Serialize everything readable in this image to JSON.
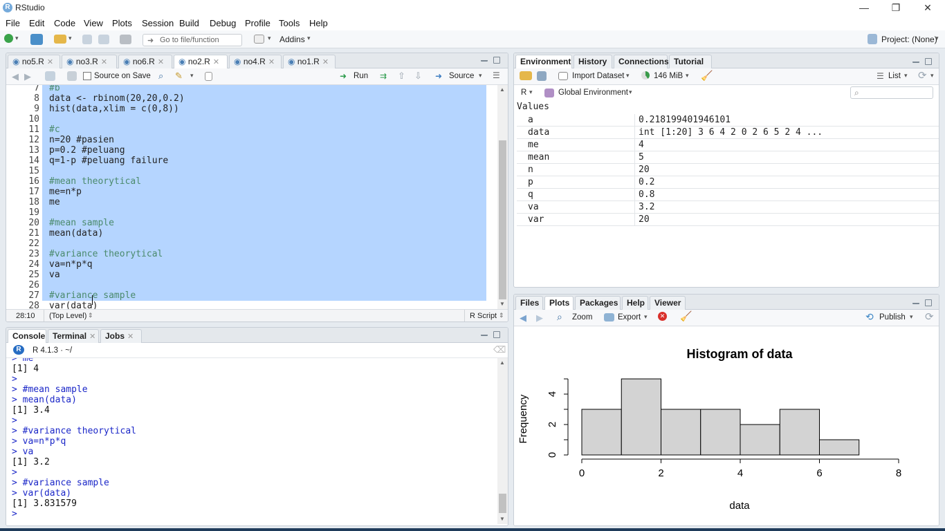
{
  "app": {
    "title": "RStudio"
  },
  "window_controls": {
    "minimize": "—",
    "restore": "❐",
    "close": "✕"
  },
  "menu": [
    "File",
    "Edit",
    "Code",
    "View",
    "Plots",
    "Session",
    "Build",
    "Debug",
    "Profile",
    "Tools",
    "Help"
  ],
  "toolbar": {
    "goto_placeholder": "Go to file/function",
    "addins": "Addins",
    "project": "Project: (None)"
  },
  "editor": {
    "tabs": [
      "no5.R",
      "no3.R",
      "no6.R",
      "no2.R",
      "no4.R",
      "no1.R"
    ],
    "active_tab": "no2.R",
    "source_on_save": "Source on Save",
    "run": "Run",
    "source": "Source",
    "lines": [
      {
        "n": "7",
        "t": "#b",
        "c": "comment"
      },
      {
        "n": "8",
        "t": "data <- rbinom(20,20,0.2)",
        "c": "code"
      },
      {
        "n": "9",
        "t": "hist(data,xlim = c(0,8))",
        "c": "code"
      },
      {
        "n": "10",
        "t": "",
        "c": "code"
      },
      {
        "n": "11",
        "t": "#c",
        "c": "comment"
      },
      {
        "n": "12",
        "t": "n=20 #pasien",
        "c": "code"
      },
      {
        "n": "13",
        "t": "p=0.2 #peluang",
        "c": "code"
      },
      {
        "n": "14",
        "t": "q=1-p #peluang failure",
        "c": "code"
      },
      {
        "n": "15",
        "t": "",
        "c": "code"
      },
      {
        "n": "16",
        "t": "#mean theorytical",
        "c": "comment"
      },
      {
        "n": "17",
        "t": "me=n*p",
        "c": "code"
      },
      {
        "n": "18",
        "t": "me",
        "c": "code"
      },
      {
        "n": "19",
        "t": "",
        "c": "code"
      },
      {
        "n": "20",
        "t": "#mean sample",
        "c": "comment"
      },
      {
        "n": "21",
        "t": "mean(data)",
        "c": "code"
      },
      {
        "n": "22",
        "t": "",
        "c": "code"
      },
      {
        "n": "23",
        "t": "#variance theorytical",
        "c": "comment"
      },
      {
        "n": "24",
        "t": "va=n*p*q",
        "c": "code"
      },
      {
        "n": "25",
        "t": "va",
        "c": "code"
      },
      {
        "n": "26",
        "t": "",
        "c": "code"
      },
      {
        "n": "27",
        "t": "#variance sample",
        "c": "comment"
      },
      {
        "n": "28",
        "t": "var(data)",
        "c": "code"
      }
    ],
    "cursor_pos": "28:10",
    "scope": "(Top Level)",
    "file_type": "R Script"
  },
  "console": {
    "tabs": [
      "Console",
      "Terminal",
      "Jobs"
    ],
    "version": "R 4.1.3 · ~/",
    "lines": [
      {
        "t": "> me",
        "c": "in"
      },
      {
        "t": "[1] 4",
        "c": "out"
      },
      {
        "t": ">",
        "c": "in"
      },
      {
        "t": "> #mean sample",
        "c": "in"
      },
      {
        "t": "> mean(data)",
        "c": "in"
      },
      {
        "t": "[1] 3.4",
        "c": "out"
      },
      {
        "t": ">",
        "c": "in"
      },
      {
        "t": "> #variance theorytical",
        "c": "in"
      },
      {
        "t": "> va=n*p*q",
        "c": "in"
      },
      {
        "t": "> va",
        "c": "in"
      },
      {
        "t": "[1] 3.2",
        "c": "out"
      },
      {
        "t": ">",
        "c": "in"
      },
      {
        "t": "> #variance sample",
        "c": "in"
      },
      {
        "t": "> var(data)",
        "c": "in"
      },
      {
        "t": "[1] 3.831579",
        "c": "out"
      },
      {
        "t": "> ",
        "c": "in"
      }
    ]
  },
  "environment": {
    "tabs": [
      "Environment",
      "History",
      "Connections",
      "Tutorial"
    ],
    "import_dataset": "Import Dataset",
    "memory": "146 MiB",
    "list_view": "List",
    "lang": "R",
    "scope": "Global Environment",
    "section": "Values",
    "rows": [
      {
        "k": "a",
        "v": "0.218199401946101"
      },
      {
        "k": "data",
        "v": "int [1:20] 3 6 4 2 0 2 6 5 2 4 ..."
      },
      {
        "k": "me",
        "v": "4"
      },
      {
        "k": "mean",
        "v": "5"
      },
      {
        "k": "n",
        "v": "20"
      },
      {
        "k": "p",
        "v": "0.2"
      },
      {
        "k": "q",
        "v": "0.8"
      },
      {
        "k": "va",
        "v": "3.2"
      },
      {
        "k": "var",
        "v": "20"
      }
    ]
  },
  "files": {
    "tabs": [
      "Files",
      "Plots",
      "Packages",
      "Help",
      "Viewer"
    ],
    "active_tab": "Plots",
    "zoom": "Zoom",
    "export": "Export",
    "publish": "Publish"
  },
  "chart_data": {
    "type": "bar",
    "title": "Histogram of data",
    "xlabel": "data",
    "ylabel": "Frequency",
    "bins": [
      [
        0,
        1
      ],
      [
        1,
        2
      ],
      [
        2,
        3
      ],
      [
        3,
        4
      ],
      [
        4,
        5
      ],
      [
        5,
        6
      ],
      [
        6,
        7
      ]
    ],
    "values": [
      3,
      5,
      3,
      3,
      2,
      3,
      1
    ],
    "xlim": [
      0,
      8
    ],
    "ylim": [
      0,
      5
    ],
    "xticks": [
      "0",
      "2",
      "4",
      "6",
      "8"
    ],
    "yticks": [
      "0",
      "2",
      "4"
    ],
    "bar_color": "#d3d3d3"
  }
}
